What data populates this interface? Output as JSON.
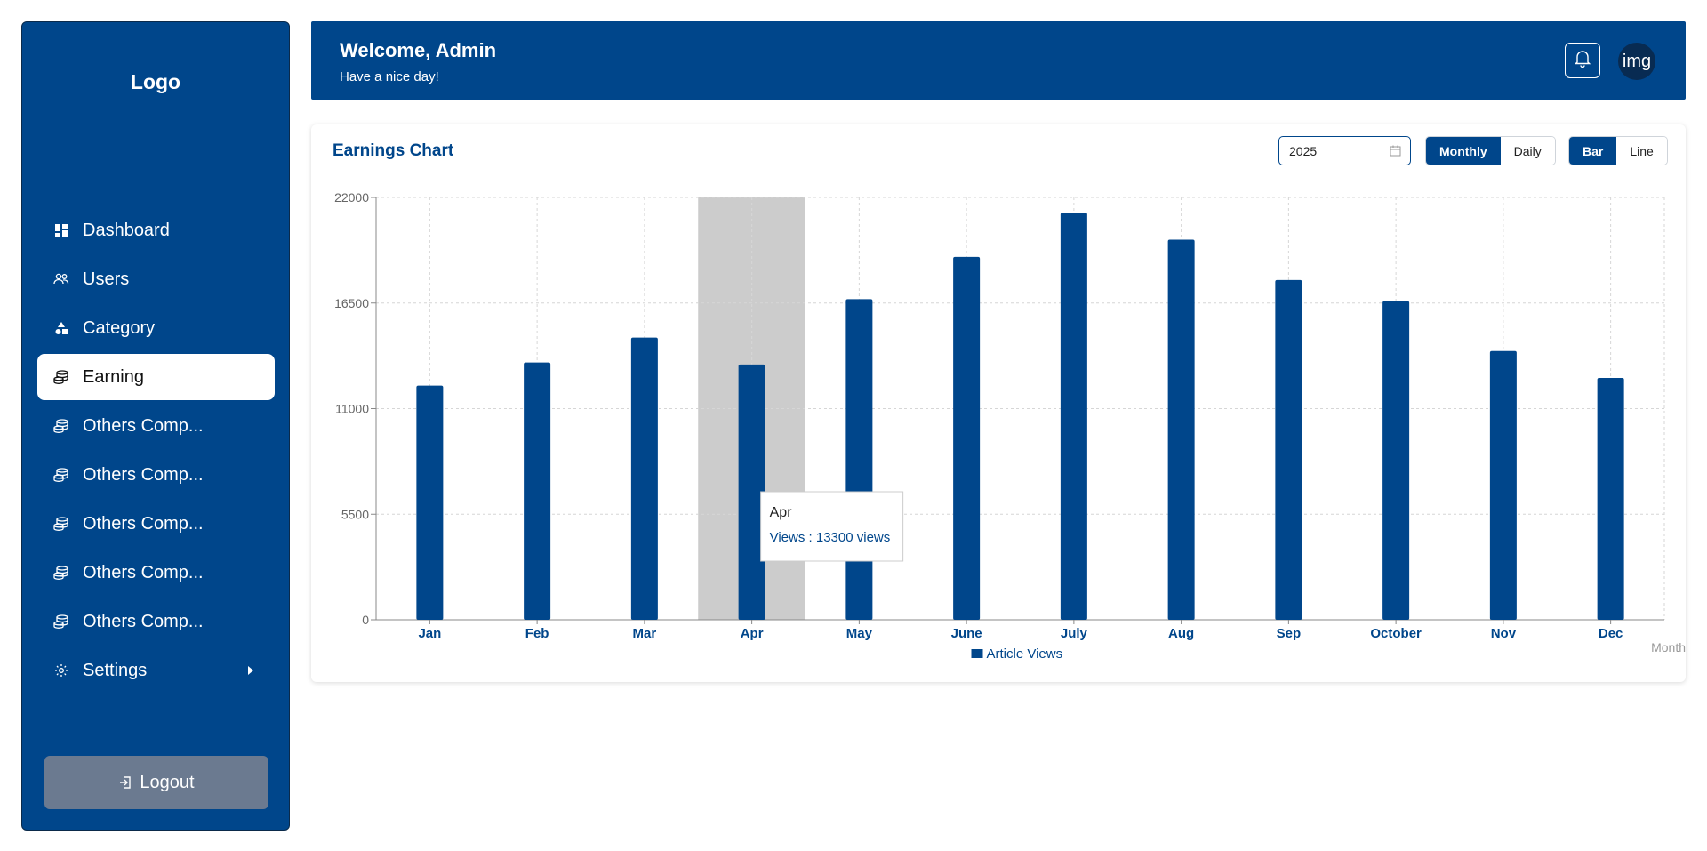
{
  "sidebar": {
    "logo": "Logo",
    "items": [
      {
        "label": "Dashboard",
        "icon": "dashboard-icon"
      },
      {
        "label": "Users",
        "icon": "users-icon"
      },
      {
        "label": "Category",
        "icon": "category-icon"
      },
      {
        "label": "Earning",
        "icon": "coins-icon",
        "active": true
      },
      {
        "label": "Others Comp...",
        "icon": "coins-icon"
      },
      {
        "label": "Others Comp...",
        "icon": "coins-icon"
      },
      {
        "label": "Others Comp...",
        "icon": "coins-icon"
      },
      {
        "label": "Others Comp...",
        "icon": "coins-icon"
      },
      {
        "label": "Others Comp...",
        "icon": "coins-icon"
      },
      {
        "label": "Settings",
        "icon": "gear-icon"
      }
    ],
    "logout": "Logout"
  },
  "header": {
    "title": "Welcome, Admin",
    "subtitle": "Have a nice day!",
    "avatar_text": "img"
  },
  "card": {
    "title": "Earnings Chart",
    "year": "2025",
    "period_options": [
      "Monthly",
      "Daily"
    ],
    "period_selected": "Monthly",
    "chart_type_options": [
      "Bar",
      "Line"
    ],
    "chart_type_selected": "Bar"
  },
  "tooltip": {
    "title": "Apr",
    "line": "Views : 13300 views"
  },
  "colors": {
    "primary": "#00468b",
    "highlight": "#cccccc",
    "logout": "#6b7a90"
  },
  "chart_data": {
    "type": "bar",
    "categories": [
      "Jan",
      "Feb",
      "Mar",
      "Apr",
      "May",
      "June",
      "July",
      "Aug",
      "Sep",
      "October",
      "Nov",
      "Dec"
    ],
    "series": [
      {
        "name": "Article Views",
        "values": [
          12200,
          13400,
          14700,
          13300,
          16700,
          18900,
          21200,
          19800,
          17700,
          16600,
          14000,
          12600
        ]
      }
    ],
    "xlabel": "Month",
    "ylabel": "",
    "ylim": [
      0,
      22000
    ],
    "yticks": [
      0,
      5500,
      11000,
      16500,
      22000
    ],
    "grid": true,
    "legend": "bottom-center",
    "highlighted_category": "Apr"
  }
}
